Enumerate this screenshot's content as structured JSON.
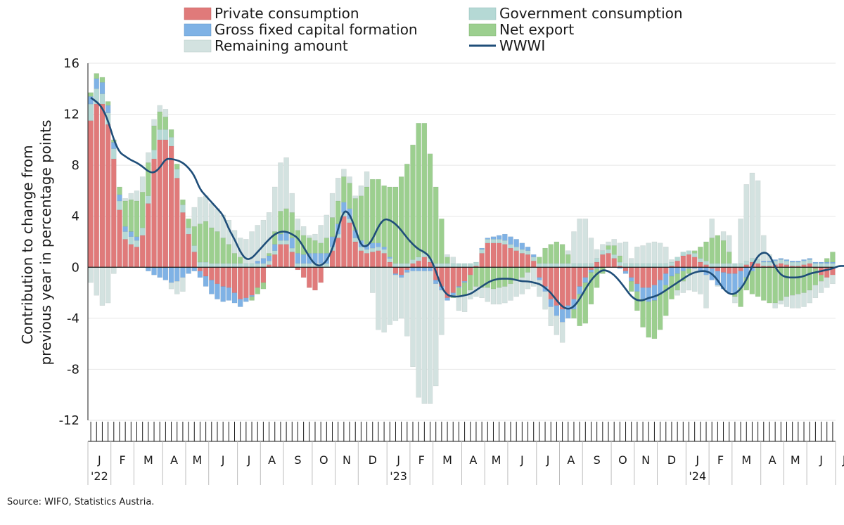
{
  "source": "Source: WIFO, Statistics Austria.",
  "chart_data": {
    "type": "bar",
    "stacked": true,
    "ylabel": "Contribution to change from previous year in percentage points",
    "ylim": [
      -12,
      16
    ],
    "yticks": [
      16,
      12,
      8,
      4,
      0,
      -4,
      -8,
      -12
    ],
    "legend_position": "top",
    "x_axis": {
      "month_labels": [
        "J",
        "F",
        "M",
        "A",
        "M",
        "J",
        "J",
        "A",
        "S",
        "O",
        "N",
        "D",
        "J",
        "F",
        "M",
        "A",
        "M",
        "J",
        "J",
        "A",
        "S",
        "O",
        "N",
        "D",
        "J",
        "F",
        "M",
        "A",
        "M",
        "J",
        "J"
      ],
      "year_labels": [
        {
          "text": "'22",
          "month_index": 0
        },
        {
          "text": "'23",
          "month_index": 12
        },
        {
          "text": "'24",
          "month_index": 24
        }
      ],
      "weeks_per_month": [
        4,
        4,
        5,
        4,
        4,
        5,
        4,
        4,
        5,
        4,
        4,
        5,
        4,
        4,
        5,
        4,
        4,
        5,
        4,
        4,
        5,
        4,
        4,
        5,
        4,
        4,
        5,
        4,
        4,
        5,
        3
      ]
    },
    "colors": {
      "private": "#e07a7a",
      "government": "#b5d9d5",
      "gfcf": "#7fb2e5",
      "netexport": "#9ccf8f",
      "remaining": "#d3e2e0",
      "wwwi": "#1f4e79"
    },
    "series": [
      {
        "key": "private",
        "name": "Private consumption",
        "values": [
          11.5,
          12.8,
          12.8,
          11.2,
          8.5,
          4.5,
          2.2,
          1.8,
          1.6,
          2.5,
          5,
          8.5,
          10,
          10,
          9.5,
          7,
          4.3,
          2.6,
          1.2,
          -0.3,
          -0.7,
          -1,
          -1.3,
          -1.5,
          -1.6,
          -2,
          -2.5,
          -2.4,
          -2.2,
          -1.6,
          -1.2,
          0.2,
          1,
          1.8,
          1.8,
          1.2,
          -0.2,
          -0.8,
          -1.6,
          -1.8,
          -1.2,
          0,
          1.3,
          2.3,
          4,
          3.5,
          2,
          1.3,
          1.1,
          1.2,
          1.3,
          1.1,
          0.4,
          -0.5,
          -0.6,
          -0.2,
          0.3,
          0.5,
          0.8,
          0.4,
          -1,
          -1.5,
          -2.4,
          -2,
          -1.5,
          -1.1,
          -0.6,
          0.1,
          1.1,
          1.9,
          1.9,
          1.9,
          1.8,
          1.5,
          1.3,
          1.1,
          1,
          0.5,
          -0.8,
          -1.5,
          -2.5,
          -3,
          -3.3,
          -3,
          -2.5,
          -1.5,
          -0.8,
          -0.2,
          0.4,
          1,
          1.1,
          0.7,
          0.1,
          -0.3,
          -0.8,
          -1.3,
          -1.6,
          -1.6,
          -1.4,
          -1,
          -0.5,
          0.1,
          0.5,
          0.9,
          1,
          0.8,
          0.4,
          0.2,
          -0.1,
          -0.3,
          -0.4,
          -0.5,
          -0.5,
          -0.3,
          0.2,
          0.4,
          0.3,
          0.1,
          0.1,
          0.2,
          0.3,
          0.2,
          0.1,
          0.1,
          0.2,
          0.3,
          -0.1,
          -0.6,
          -0.8,
          -0.6
        ]
      },
      {
        "key": "government",
        "name": "Government consumption",
        "values": [
          1.3,
          1.2,
          0.8,
          0.9,
          0.8,
          0.7,
          0.6,
          0.6,
          0.5,
          0.6,
          0.6,
          0.7,
          0.8,
          0.8,
          0.7,
          0.7,
          0.6,
          0.5,
          0.5,
          0.4,
          0.4,
          0.3,
          0.3,
          0.3,
          0.3,
          0.3,
          0.3,
          0.3,
          0.3,
          0.3,
          0.3,
          0.3,
          0.3,
          0.3,
          0.3,
          0.3,
          0.3,
          0.3,
          0.3,
          0.3,
          0.3,
          0.3,
          0.3,
          0.3,
          0.3,
          0.3,
          0.3,
          0.3,
          0.3,
          0.3,
          0.3,
          0.3,
          0.3,
          0.3,
          0.3,
          0.3,
          0.3,
          0.3,
          0.3,
          0.3,
          0.3,
          0.3,
          0.3,
          0.3,
          0.3,
          0.3,
          0.3,
          0.3,
          0.3,
          0.3,
          0.3,
          0.3,
          0.3,
          0.3,
          0.3,
          0.3,
          0.3,
          0.3,
          0.3,
          0.3,
          0.3,
          0.3,
          0.3,
          0.3,
          0.3,
          0.3,
          0.3,
          0.3,
          0.3,
          0.3,
          0.3,
          0.3,
          0.3,
          0.3,
          0.3,
          0.3,
          0.3,
          0.3,
          0.3,
          0.3,
          0.3,
          0.3,
          0.3,
          0.3,
          0.3,
          0.3,
          0.3,
          0.3,
          0.3,
          0.3,
          0.3,
          0.3,
          0.3,
          0.3,
          0.3,
          0.3,
          0.3,
          0.3,
          0.3,
          0.3,
          0.3,
          0.3,
          0.3,
          0.3,
          0.3,
          0.3,
          0.3,
          0.3,
          0.3,
          0.3
        ]
      },
      {
        "key": "gfcf",
        "name": "Gross fixed capital formation",
        "values": [
          0.6,
          0.8,
          0.9,
          0.6,
          0.5,
          0.5,
          0.4,
          0.4,
          0.3,
          0,
          -0.3,
          -0.6,
          -0.8,
          -1,
          -1.2,
          -1.1,
          -0.8,
          -0.5,
          -0.3,
          -0.5,
          -0.8,
          -1.1,
          -1.2,
          -1.2,
          -1,
          -0.8,
          -0.6,
          -0.3,
          -0.1,
          0.2,
          0.4,
          0.4,
          0.5,
          0.5,
          0.7,
          0.8,
          0.8,
          0.7,
          0.8,
          0.8,
          0.8,
          0.8,
          0.8,
          0.8,
          0.8,
          0.8,
          0.6,
          0.5,
          0.4,
          0.4,
          0.3,
          0.2,
          0.1,
          -0.1,
          -0.2,
          -0.2,
          -0.3,
          -0.3,
          -0.3,
          -0.3,
          -0.3,
          -0.3,
          -0.2,
          -0.2,
          -0.1,
          -0.1,
          0,
          0,
          0.1,
          0.1,
          0.2,
          0.3,
          0.5,
          0.6,
          0.6,
          0.5,
          0.3,
          0.2,
          -0.2,
          -0.4,
          -0.6,
          -0.8,
          -1,
          -1,
          -0.8,
          -0.6,
          -0.4,
          -0.2,
          -0.1,
          0,
          0,
          0,
          -0.1,
          -0.2,
          -0.3,
          -0.6,
          -0.9,
          -1.1,
          -1.2,
          -1.1,
          -0.9,
          -0.7,
          -0.5,
          -0.3,
          -0.1,
          -0.1,
          -0.3,
          -0.6,
          -0.9,
          -1.1,
          -1.3,
          -1.5,
          -1.6,
          -1.3,
          -0.8,
          -0.3,
          0,
          0.1,
          0.1,
          0.1,
          0.1,
          0.1,
          0.1,
          0.1,
          0.1,
          0.1,
          0.1,
          0.1,
          0.1,
          0.1
        ]
      },
      {
        "key": "netexport",
        "name": "Net export",
        "values": [
          0.3,
          0.4,
          0.4,
          0.3,
          0.2,
          0.6,
          2,
          2.5,
          2.8,
          2.8,
          2.6,
          1.9,
          1.4,
          1,
          0.6,
          0.4,
          0.4,
          0.7,
          1.5,
          3,
          3.2,
          2.8,
          2.5,
          2,
          1.5,
          0.8,
          0.5,
          0,
          -0.3,
          -0.5,
          -0.5,
          0.2,
          1,
          1.8,
          1.8,
          2,
          1.8,
          1.5,
          1.2,
          1,
          0.8,
          1.2,
          1.5,
          1.8,
          2,
          2,
          2.5,
          3.5,
          4.5,
          5,
          5,
          4.8,
          5.5,
          6,
          6.8,
          7.8,
          9,
          10.5,
          10.2,
          8.2,
          6,
          3.5,
          0.5,
          -0.2,
          -0.6,
          -1,
          -1.2,
          -1.5,
          -1.6,
          -1.6,
          -1.7,
          -1.6,
          -1.5,
          -1.3,
          -1,
          -0.8,
          -0.4,
          0,
          0.5,
          1.2,
          1.5,
          1.7,
          1.5,
          0.7,
          -0.7,
          -2.5,
          -3.2,
          -2.5,
          -1.5,
          -0.5,
          0.3,
          0.7,
          0.5,
          0,
          -0.8,
          -1.5,
          -2.2,
          -2.8,
          -3,
          -2.8,
          -2.4,
          -1.8,
          -1.3,
          -0.8,
          -0.4,
          0.2,
          0.9,
          1.5,
          2,
          2.2,
          1.8,
          0.9,
          -0.2,
          -1.5,
          -1,
          -1.8,
          -2.3,
          -2.6,
          -2.8,
          -2.8,
          -2.6,
          -2.3,
          -2.2,
          -2.1,
          -2,
          -1.8,
          -1.3,
          -0.5,
          0.3,
          0.8
        ]
      },
      {
        "key": "remaining",
        "name": "Remaining amount",
        "values": [
          -1.2,
          -2.2,
          -3,
          -2.8,
          -0.5,
          0,
          0.2,
          0.5,
          0.8,
          1.2,
          0.8,
          0.5,
          0.5,
          0.6,
          -0.5,
          -1,
          -1.1,
          0,
          1.5,
          2.1,
          2,
          1.9,
          1.8,
          1.8,
          1.9,
          1.8,
          1.5,
          1.9,
          2.5,
          2.8,
          3,
          3.2,
          3.5,
          3.8,
          4,
          1.5,
          0.9,
          0.7,
          0.2,
          0.5,
          1.4,
          1.8,
          1.9,
          1.8,
          0.6,
          0.5,
          0.2,
          0.8,
          1.2,
          -2,
          -4.9,
          -5.1,
          -4.5,
          -3.6,
          -3.2,
          -5,
          -7.5,
          -9.9,
          -10.4,
          -10.4,
          -8,
          -3.5,
          0.2,
          0.5,
          -1.2,
          -1.3,
          -0.7,
          -0.8,
          -0.8,
          -1.1,
          -1.2,
          -1.3,
          -1.3,
          -1.3,
          -1.3,
          -1.3,
          -1.3,
          -1.5,
          -1.3,
          -1.4,
          -1.5,
          -1.5,
          -1.6,
          0.3,
          2.5,
          3.5,
          3.5,
          2,
          0.7,
          0.5,
          0.3,
          0.5,
          1,
          1.7,
          0.4,
          1.3,
          1.4,
          1.6,
          1.7,
          1.6,
          1.3,
          0.2,
          -0.4,
          -0.9,
          -1.3,
          -1.8,
          -1.8,
          -2.6,
          1.5,
          -0.1,
          0.7,
          1.3,
          -0.5,
          3.5,
          6,
          6.7,
          6.2,
          2,
          0.5,
          -0.4,
          -0.3,
          -0.8,
          -1,
          -1.1,
          -1.1,
          -1,
          -1,
          -0.9,
          -0.8,
          -0.7,
          -0.6,
          -0.6,
          -0.5
        ]
      }
    ],
    "line": {
      "key": "wwwi",
      "name": "WWWI",
      "values": [
        13.3,
        13,
        12.5,
        11.5,
        10,
        9,
        8.7,
        8.4,
        8.2,
        7.9,
        7.5,
        7.4,
        7.8,
        8.5,
        8.5,
        8.4,
        8.2,
        7.8,
        7.2,
        6.1,
        5.6,
        5.1,
        4.6,
        4.1,
        3,
        2.2,
        1.2,
        0.6,
        0.7,
        1.2,
        1.7,
        2.2,
        2.6,
        2.8,
        2.8,
        2.6,
        2.3,
        1.6,
        0.8,
        0.2,
        0.1,
        0.5,
        1.4,
        3,
        4.5,
        4.2,
        3,
        1.7,
        1.6,
        2.2,
        3.2,
        3.8,
        3.7,
        3.4,
        2.9,
        2.3,
        1.8,
        1.4,
        1.2,
        0.8,
        -0.3,
        -1.6,
        -2.2,
        -2.3,
        -2.3,
        -2.2,
        -2.1,
        -1.8,
        -1.5,
        -1.2,
        -1,
        -0.9,
        -0.9,
        -0.9,
        -1,
        -1.1,
        -1.1,
        -1.2,
        -1.3,
        -1.6,
        -2,
        -2.6,
        -3.1,
        -3.3,
        -3.1,
        -2.5,
        -1.7,
        -1,
        -0.5,
        -0.2,
        -0.3,
        -0.6,
        -1.1,
        -1.7,
        -2.3,
        -2.6,
        -2.6,
        -2.4,
        -2.3,
        -2.1,
        -1.8,
        -1.5,
        -1.2,
        -0.9,
        -0.6,
        -0.4,
        -0.3,
        -0.3,
        -0.5,
        -1,
        -1.7,
        -2.1,
        -2.1,
        -1.7,
        -1,
        0.1,
        0.9,
        1.2,
        1,
        0,
        -0.6,
        -0.8,
        -0.8,
        -0.8,
        -0.7,
        -0.5,
        -0.4,
        -0.3,
        -0.2,
        -0.1,
        0.1,
        0.1,
        0.1
      ]
    }
  }
}
